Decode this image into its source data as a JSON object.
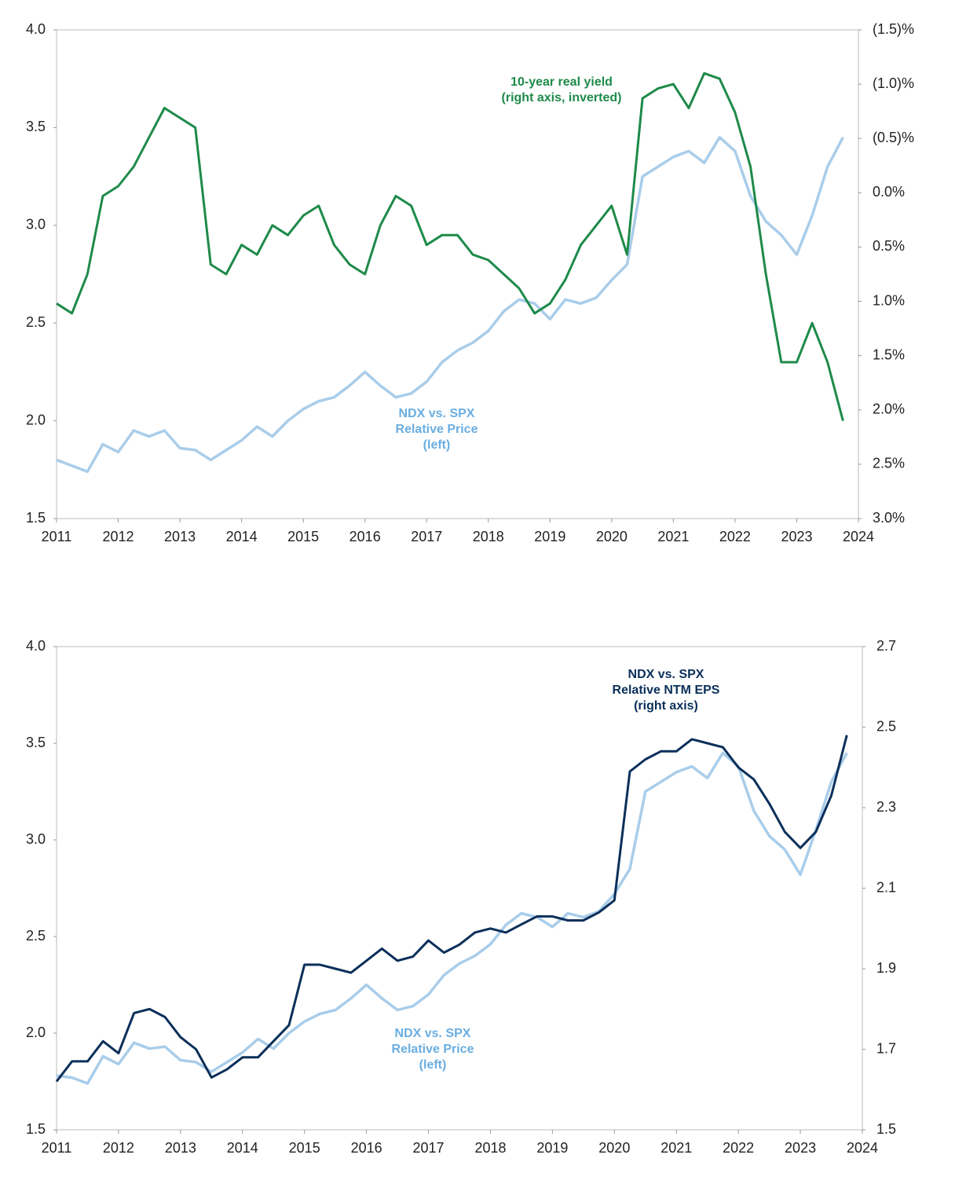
{
  "chart_data": [
    {
      "type": "line",
      "x": [
        2011,
        2011.25,
        2011.5,
        2011.75,
        2012,
        2012.25,
        2012.5,
        2012.75,
        2013,
        2013.25,
        2013.5,
        2013.75,
        2014,
        2014.25,
        2014.5,
        2014.75,
        2015,
        2015.25,
        2015.5,
        2015.75,
        2016,
        2016.25,
        2016.5,
        2016.75,
        2017,
        2017.25,
        2017.5,
        2017.75,
        2018,
        2018.25,
        2018.5,
        2018.75,
        2019,
        2019.25,
        2019.5,
        2019.75,
        2020,
        2020.25,
        2020.5,
        2020.75,
        2021,
        2021.25,
        2021.5,
        2021.75,
        2022,
        2022.25,
        2022.5,
        2022.75,
        2023,
        2023.25,
        2023.5,
        2023.75
      ],
      "xlim": [
        2011,
        2024
      ],
      "xticks": [
        2011,
        2012,
        2013,
        2014,
        2015,
        2016,
        2017,
        2018,
        2019,
        2020,
        2021,
        2022,
        2023,
        2024
      ],
      "ylim": [
        1.5,
        4.0
      ],
      "yticks": [
        1.5,
        {
          "value": 2,
          "label": "2.0"
        },
        2.5,
        {
          "value": 3,
          "label": "3.0"
        },
        3.5,
        {
          "value": 4,
          "label": "4.0"
        }
      ],
      "y2lim": [
        -1.5,
        3.0
      ],
      "y2_inverted": true,
      "y2ticks": [
        {
          "value": -1.5,
          "label": "(1.5)%"
        },
        {
          "value": -1.0,
          "label": "(1.0)%"
        },
        {
          "value": -0.5,
          "label": "(0.5)%"
        },
        {
          "value": 0,
          "label": "0.0%"
        },
        {
          "value": 0.5,
          "label": "0.5%"
        },
        {
          "value": 1.0,
          "label": "1.0%"
        },
        {
          "value": 1.5,
          "label": "1.5%"
        },
        {
          "value": 2.0,
          "label": "2.0%"
        },
        {
          "value": 2.5,
          "label": "2.5%"
        },
        {
          "value": 3.0,
          "label": "3.0%"
        }
      ],
      "series": [
        {
          "name": "NDX vs. SPX Relative Price",
          "color": "#a9cdea",
          "axis": "y",
          "values": [
            1.8,
            1.77,
            1.74,
            1.88,
            1.84,
            1.95,
            1.92,
            1.95,
            1.86,
            1.85,
            1.8,
            1.85,
            1.9,
            1.97,
            1.92,
            2.0,
            2.06,
            2.1,
            2.12,
            2.18,
            2.25,
            2.18,
            2.12,
            2.14,
            2.2,
            2.3,
            2.36,
            2.4,
            2.46,
            2.56,
            2.62,
            2.6,
            2.52,
            2.62,
            2.6,
            2.63,
            2.72,
            2.8,
            3.25,
            3.3,
            3.35,
            3.38,
            3.32,
            3.45,
            3.38,
            3.15,
            3.02,
            2.95,
            2.85,
            3.05,
            3.3,
            3.45
          ]
        },
        {
          "name": "10-year real yield",
          "color": "#1e8a4a",
          "axis": "y2",
          "values": [
            1.02,
            1.11,
            0.75,
            0.03,
            -0.06,
            -0.24,
            -0.51,
            -0.78,
            -0.69,
            -0.6,
            0.66,
            0.75,
            0.48,
            0.57,
            0.3,
            0.39,
            0.21,
            0.12,
            0.48,
            0.66,
            0.75,
            0.3,
            0.03,
            0.12,
            0.48,
            0.39,
            0.39,
            0.57,
            0.62,
            0.75,
            0.88,
            1.11,
            1.02,
            0.8,
            0.48,
            0.3,
            0.12,
            0.57,
            -0.87,
            -0.96,
            -1.0,
            -0.78,
            -1.1,
            -1.05,
            -0.74,
            -0.24,
            0.75,
            1.56,
            1.56,
            1.2,
            1.56,
            2.1
          ]
        }
      ],
      "annotations": [
        {
          "lines": [
            "10-year real yield",
            "(right axis, inverted)"
          ],
          "color": "#1e8a4a"
        },
        {
          "lines": [
            "NDX vs. SPX",
            "Relative Price",
            "(left)"
          ],
          "color": "#6aaee0"
        }
      ]
    },
    {
      "type": "line",
      "x": [
        2011,
        2011.25,
        2011.5,
        2011.75,
        2012,
        2012.25,
        2012.5,
        2012.75,
        2013,
        2013.25,
        2013.5,
        2013.75,
        2014,
        2014.25,
        2014.5,
        2014.75,
        2015,
        2015.25,
        2015.5,
        2015.75,
        2016,
        2016.25,
        2016.5,
        2016.75,
        2017,
        2017.25,
        2017.5,
        2017.75,
        2018,
        2018.25,
        2018.5,
        2018.75,
        2019,
        2019.25,
        2019.5,
        2019.75,
        2020,
        2020.25,
        2020.5,
        2020.75,
        2021,
        2021.25,
        2021.5,
        2021.75,
        2022,
        2022.25,
        2022.5,
        2022.75,
        2023,
        2023.25,
        2023.5,
        2023.75
      ],
      "xlim": [
        2011,
        2024
      ],
      "xticks": [
        2011,
        2012,
        2013,
        2014,
        2015,
        2016,
        2017,
        2018,
        2019,
        2020,
        2021,
        2022,
        2023,
        2024
      ],
      "ylim": [
        1.5,
        4.0
      ],
      "yticks": [
        1.5,
        {
          "value": 2,
          "label": "2.0"
        },
        2.5,
        {
          "value": 3,
          "label": "3.0"
        },
        3.5,
        {
          "value": 4,
          "label": "4.0"
        }
      ],
      "y2lim": [
        1.5,
        2.7
      ],
      "y2_inverted": false,
      "y2ticks": [
        1.5,
        1.7,
        1.9,
        2.1,
        2.3,
        2.5,
        2.7
      ],
      "series": [
        {
          "name": "NDX vs. SPX Relative Price",
          "color": "#a9cdea",
          "axis": "y",
          "values": [
            1.78,
            1.77,
            1.74,
            1.88,
            1.84,
            1.95,
            1.92,
            1.93,
            1.86,
            1.85,
            1.8,
            1.85,
            1.9,
            1.97,
            1.92,
            2.0,
            2.06,
            2.1,
            2.12,
            2.18,
            2.25,
            2.18,
            2.12,
            2.14,
            2.2,
            2.3,
            2.36,
            2.4,
            2.46,
            2.56,
            2.62,
            2.6,
            2.55,
            2.62,
            2.6,
            2.63,
            2.72,
            2.85,
            3.25,
            3.3,
            3.35,
            3.38,
            3.32,
            3.45,
            3.38,
            3.15,
            3.02,
            2.95,
            2.82,
            3.05,
            3.3,
            3.45
          ]
        },
        {
          "name": "NDX vs. SPX Relative NTM EPS",
          "color": "#0b2f5a",
          "axis": "y2",
          "values": [
            1.62,
            1.67,
            1.67,
            1.72,
            1.69,
            1.79,
            1.8,
            1.78,
            1.73,
            1.7,
            1.63,
            1.65,
            1.68,
            1.68,
            1.72,
            1.76,
            1.91,
            1.91,
            1.9,
            1.89,
            1.92,
            1.95,
            1.92,
            1.93,
            1.97,
            1.94,
            1.96,
            1.99,
            2.0,
            1.99,
            2.01,
            2.03,
            2.03,
            2.02,
            2.02,
            2.04,
            2.07,
            2.39,
            2.42,
            2.44,
            2.44,
            2.47,
            2.46,
            2.45,
            2.4,
            2.37,
            2.31,
            2.24,
            2.2,
            2.24,
            2.33,
            2.48
          ]
        }
      ],
      "annotations": [
        {
          "lines": [
            "NDX vs. SPX",
            "Relative NTM EPS",
            "(right axis)"
          ],
          "color": "#0b2f5a"
        },
        {
          "lines": [
            "NDX vs. SPX",
            "Relative Price",
            "(left)"
          ],
          "color": "#6aaee0"
        }
      ]
    }
  ]
}
